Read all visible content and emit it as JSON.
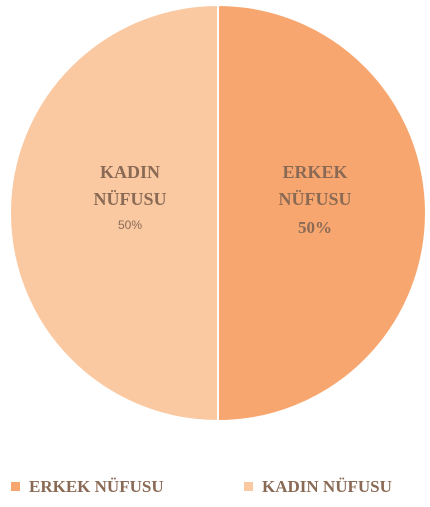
{
  "chart_data": {
    "type": "pie",
    "title": "",
    "slices": [
      {
        "label": "ERKEK NÜFUSU",
        "label_lines": [
          "ERKEK",
          "NÜFUSU"
        ],
        "value": 50,
        "percent_label": "50%",
        "color": "#F8A66F"
      },
      {
        "label": "KADIN NÜFUSU",
        "label_lines": [
          "KADIN",
          "NÜFUSU"
        ],
        "value": 50,
        "percent_label": "50%",
        "color": "#FAC9A2"
      }
    ],
    "legend": {
      "position": "bottom",
      "items": [
        "ERKEK NÜFUSU",
        "KADIN NÜFUSU"
      ]
    },
    "colors": {
      "text": "#8A6A55",
      "background": "#FFFFFF"
    }
  }
}
